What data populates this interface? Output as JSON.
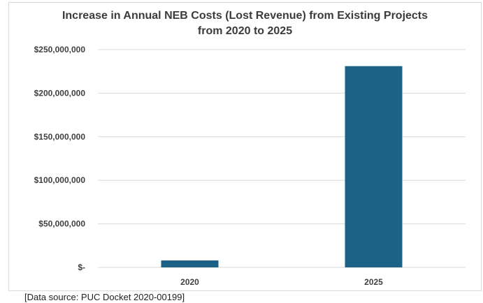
{
  "chart_data": {
    "type": "bar",
    "title": [
      "Increase in Annual NEB Costs (Lost Revenue) from Existing Projects",
      "from 2020 to 2025"
    ],
    "categories": [
      "2020",
      "2025"
    ],
    "values": [
      8000000,
      231000000
    ],
    "ylim": [
      0,
      250000000
    ],
    "yticks": [
      0,
      50000000,
      100000000,
      150000000,
      200000000,
      250000000
    ],
    "ytick_labels": [
      "$-",
      "$50,000,000",
      "$100,000,000",
      "$150,000,000",
      "$200,000,000",
      "$250,000,000"
    ],
    "xlabel": "",
    "ylabel": "",
    "grid": true,
    "bar_color": "#1b6286",
    "grid_color": "#d9d9d9"
  },
  "source_note": "[Data source: PUC Docket 2020-00199]"
}
